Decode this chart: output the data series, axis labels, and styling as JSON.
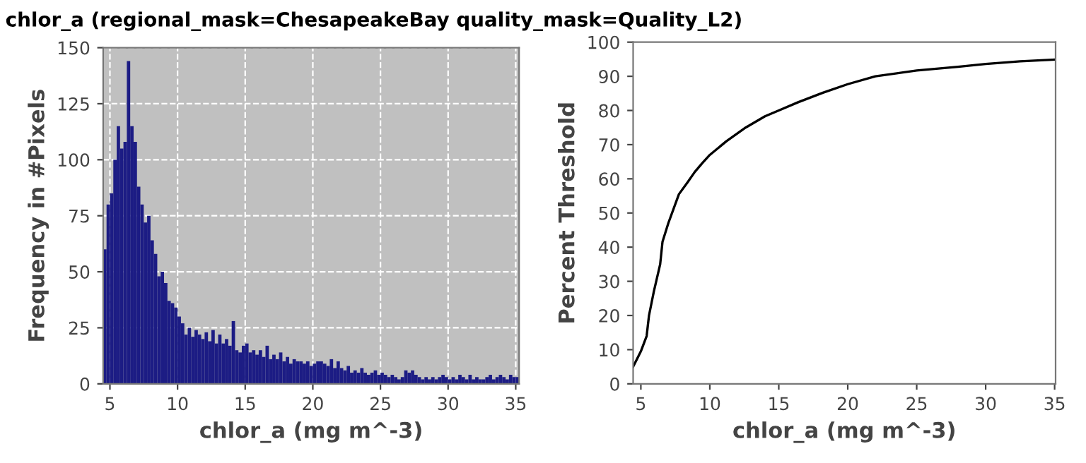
{
  "chart_data": [
    {
      "type": "histogram",
      "title": "chlor_a (regional_mask=ChesapeakeBay quality_mask=Quality_L2)",
      "xlabel": "chlor_a (mg m^-3)",
      "ylabel": "Frequency in #Pixels",
      "color": "#1c1c84",
      "grid": true,
      "bins": [
        4.5,
        4.75,
        5.0,
        5.25,
        5.5,
        5.75,
        6.0,
        6.25,
        6.5,
        6.75,
        7.0,
        7.25,
        7.5,
        7.75,
        8.0,
        8.25,
        8.5,
        8.75,
        9.0,
        9.25,
        9.5,
        9.75,
        10.0,
        10.25,
        10.5,
        10.75,
        11.0,
        11.25,
        11.5,
        11.75,
        12.0,
        12.25,
        12.5,
        12.75,
        13.0,
        13.25,
        13.5,
        13.75,
        14.0,
        14.25,
        14.5,
        14.75,
        15.0,
        15.25,
        15.5,
        15.75,
        16.0,
        16.25,
        16.5,
        16.75,
        17.0,
        17.25,
        17.5,
        17.75,
        18.0,
        18.25,
        18.5,
        18.75,
        19.0,
        19.25,
        19.5,
        19.75,
        20.0,
        20.25,
        20.5,
        20.75,
        21.0,
        21.25,
        21.5,
        21.75,
        22.0,
        22.25,
        22.5,
        22.75,
        23.0,
        23.25,
        23.5,
        23.75,
        24.0,
        24.25,
        24.5,
        24.75,
        25.0,
        25.25,
        25.5,
        25.75,
        26.0,
        26.25,
        26.5,
        26.75,
        27.0,
        27.25,
        27.5,
        27.75,
        28.0,
        28.25,
        28.5,
        28.75,
        29.0,
        29.25,
        29.5,
        29.75,
        30.0,
        30.25,
        30.5,
        30.75,
        31.0,
        31.25,
        31.5,
        31.75,
        32.0,
        32.25,
        32.5,
        32.75,
        33.0,
        33.25,
        33.5,
        33.75,
        34.0,
        34.25,
        34.5,
        34.75,
        35.0,
        35.25
      ],
      "values": [
        60,
        80,
        85,
        100,
        115,
        105,
        108,
        144,
        115,
        108,
        88,
        80,
        72,
        75,
        64,
        58,
        48,
        50,
        45,
        37,
        36,
        34,
        30,
        27,
        22,
        25,
        21,
        24,
        22,
        20,
        23,
        19,
        24,
        18,
        22,
        18,
        20,
        17,
        28,
        15,
        14,
        17,
        18,
        14,
        15,
        13,
        15,
        12,
        17,
        11,
        13,
        11,
        14,
        10,
        12,
        9,
        11,
        10,
        10,
        9,
        10,
        8,
        9,
        10,
        10,
        9,
        8,
        11,
        7,
        10,
        7,
        6,
        8,
        5,
        6,
        5,
        7,
        5,
        4,
        5,
        6,
        4,
        5,
        4,
        3,
        4,
        3,
        2,
        3,
        6,
        5,
        6,
        4,
        3,
        2,
        3,
        2,
        3,
        2,
        3,
        4,
        3,
        2,
        3,
        2,
        4,
        3,
        2,
        4,
        2,
        3,
        2,
        2,
        3,
        4,
        2,
        3,
        4,
        3,
        2,
        4,
        3,
        3
      ],
      "xlim": [
        4.5,
        35.25
      ],
      "ylim": [
        0,
        150
      ],
      "xticks": [
        5,
        10,
        15,
        20,
        25,
        30,
        35
      ],
      "yticks": [
        0,
        25,
        50,
        75,
        100,
        125,
        150
      ]
    },
    {
      "type": "line",
      "xlabel": "chlor_a (mg m^-3)",
      "ylabel": "Percent Threshold",
      "color": "#000000",
      "grid": false,
      "x": [
        4.44,
        5,
        5.42,
        5.59,
        5.94,
        6.4,
        6.57,
        6.99,
        7.76,
        8.39,
        8.91,
        9.43,
        10,
        11.2,
        12.6,
        14.0,
        15,
        16.4,
        18.2,
        20,
        22,
        25,
        28,
        30,
        32.5,
        35
      ],
      "values": [
        5,
        9.5,
        14,
        20,
        27,
        35,
        41.6,
        47,
        55.5,
        59,
        62,
        64.5,
        67,
        71,
        75,
        78.3,
        80,
        82.4,
        85.2,
        87.7,
        90,
        91.7,
        92.8,
        93.6,
        94.4,
        94.9
      ],
      "xlim": [
        4.44,
        35.07
      ],
      "ylim": [
        0,
        100
      ],
      "xticks": [
        5,
        10,
        15,
        20,
        25,
        30,
        35
      ],
      "yticks": [
        0,
        10,
        20,
        30,
        40,
        50,
        60,
        70,
        80,
        90,
        100
      ]
    }
  ]
}
